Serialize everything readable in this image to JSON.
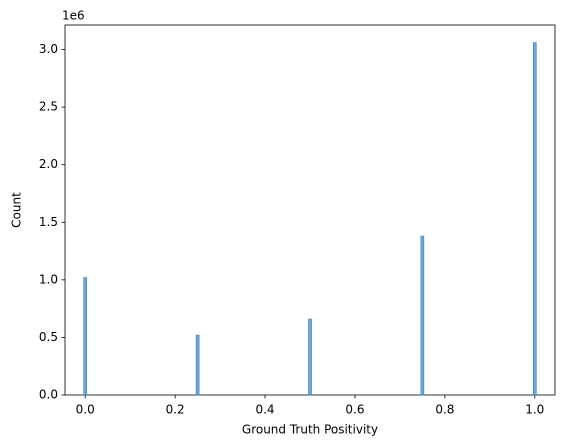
{
  "chart_data": {
    "type": "bar",
    "xlabel": "Ground Truth Positivity",
    "ylabel": "Count",
    "offset_text": "1e6",
    "x": [
      0,
      0.25,
      0.5,
      0.75,
      1.0
    ],
    "values": [
      1020000,
      520000,
      660000,
      1380000,
      3060000
    ],
    "color": "#6ea8d2",
    "edgecolor": "#3f7eae",
    "xlim": [
      -0.045,
      1.045
    ],
    "ylim": [
      0,
      3213000
    ],
    "xticks": [
      {
        "value": 0,
        "label": "0.0"
      },
      {
        "value": 0.2,
        "label": "0.2"
      },
      {
        "value": 0.4,
        "label": "0.4"
      },
      {
        "value": 0.6,
        "label": "0.6"
      },
      {
        "value": 0.8,
        "label": "0.8"
      },
      {
        "value": 1.0,
        "label": "1.0"
      }
    ],
    "yticks": [
      {
        "value": 0,
        "label": "0.0"
      },
      {
        "value": 500000,
        "label": "0.5"
      },
      {
        "value": 1000000,
        "label": "1.0"
      },
      {
        "value": 1500000,
        "label": "1.5"
      },
      {
        "value": 2000000,
        "label": "2.0"
      },
      {
        "value": 2500000,
        "label": "2.5"
      },
      {
        "value": 3000000,
        "label": "3.0"
      }
    ],
    "grid": false
  }
}
